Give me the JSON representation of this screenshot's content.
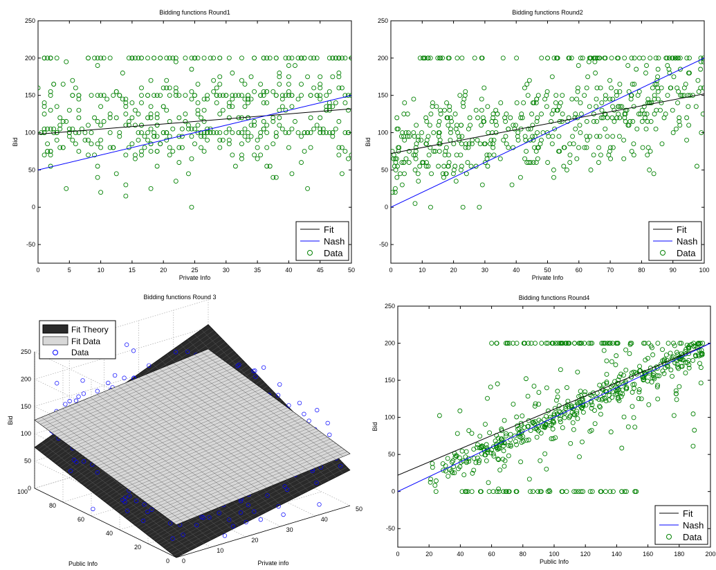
{
  "chart_data": [
    {
      "type": "scatter",
      "title": "Bidding functions Round1",
      "xlabel": "Private Info",
      "ylabel": "Bid",
      "xlim": [
        0,
        50
      ],
      "ylim": [
        -75,
        250
      ],
      "xticks": [
        0,
        5,
        10,
        15,
        20,
        25,
        30,
        35,
        40,
        45,
        50
      ],
      "yticks": [
        -50,
        0,
        50,
        100,
        150,
        200,
        250
      ],
      "grid": false,
      "legend_position": "bottom-right",
      "series": [
        {
          "name": "Fit",
          "kind": "line",
          "color": "#000000",
          "x": [
            0,
            50
          ],
          "y": [
            98,
            132
          ]
        },
        {
          "name": "Nash",
          "kind": "line",
          "color": "#0000ff",
          "x": [
            0,
            50
          ],
          "y": [
            50,
            150
          ]
        },
        {
          "name": "Data",
          "kind": "scatter",
          "color": "#008000",
          "generated": {
            "n": 520,
            "seed": 11,
            "xmax": 50,
            "mode": "round1"
          }
        }
      ]
    },
    {
      "type": "scatter",
      "title": "Bidding functions Round2",
      "xlabel": "Private Info",
      "ylabel": "Bid",
      "xlim": [
        0,
        100
      ],
      "ylim": [
        -75,
        250
      ],
      "xticks": [
        0,
        10,
        20,
        30,
        40,
        50,
        60,
        70,
        80,
        90,
        100
      ],
      "yticks": [
        -50,
        0,
        50,
        100,
        150,
        200,
        250
      ],
      "grid": false,
      "legend_position": "bottom-right",
      "series": [
        {
          "name": "Fit",
          "kind": "line",
          "color": "#000000",
          "x": [
            0,
            100
          ],
          "y": [
            72,
            152
          ]
        },
        {
          "name": "Nash",
          "kind": "line",
          "color": "#0000ff",
          "x": [
            0,
            100
          ],
          "y": [
            0,
            200
          ]
        },
        {
          "name": "Data",
          "kind": "scatter",
          "color": "#008000",
          "generated": {
            "n": 560,
            "seed": 23,
            "xmax": 100,
            "mode": "round2"
          }
        }
      ]
    },
    {
      "type": "surface3d",
      "title": "Bidding functions Round 3",
      "xlabel": "Private info",
      "ylabel": "Public Info",
      "zlabel": "Bid",
      "xlim": [
        0,
        50
      ],
      "ylim": [
        0,
        100
      ],
      "zlim": [
        0,
        250
      ],
      "xticks": [
        0,
        10,
        20,
        30,
        40,
        50
      ],
      "yticks": [
        0,
        20,
        40,
        60,
        80,
        100
      ],
      "zticks": [
        0,
        50,
        100,
        150,
        200,
        250
      ],
      "grid": true,
      "legend_position": "top-left",
      "series": [
        {
          "name": "Fit Theory",
          "kind": "surface",
          "color": "#2a2a2a",
          "corners": {
            "x0y0": 0,
            "x50y0": 65,
            "x0y100": 75,
            "x50y100": 205
          }
        },
        {
          "name": "Fit Data",
          "kind": "surface",
          "color": "#d8d8d8",
          "corners": {
            "x0y0": 60,
            "x50y0": 95,
            "x0y100": 125,
            "x50y100": 160
          }
        },
        {
          "name": "Data",
          "kind": "scatter3d",
          "color": "#0000ff",
          "generated": {
            "n": 420,
            "seed": 37
          }
        }
      ]
    },
    {
      "type": "scatter",
      "title": "Bidding functions Round4",
      "xlabel": "Public Info",
      "ylabel": "Bid",
      "xlim": [
        0,
        200
      ],
      "ylim": [
        -75,
        250
      ],
      "xticks": [
        0,
        20,
        40,
        60,
        80,
        100,
        120,
        140,
        160,
        180,
        200
      ],
      "yticks": [
        -50,
        0,
        50,
        100,
        150,
        200,
        250
      ],
      "grid": false,
      "legend_position": "bottom-right",
      "series": [
        {
          "name": "Fit",
          "kind": "line",
          "color": "#000000",
          "x": [
            0,
            200
          ],
          "y": [
            22,
            200
          ]
        },
        {
          "name": "Nash",
          "kind": "line",
          "color": "#0000ff",
          "x": [
            0,
            200
          ],
          "y": [
            0,
            200
          ]
        },
        {
          "name": "Data",
          "kind": "scatter",
          "color": "#008000",
          "generated": {
            "n": 600,
            "seed": 51,
            "xmax": 200,
            "mode": "round4"
          }
        }
      ]
    }
  ]
}
